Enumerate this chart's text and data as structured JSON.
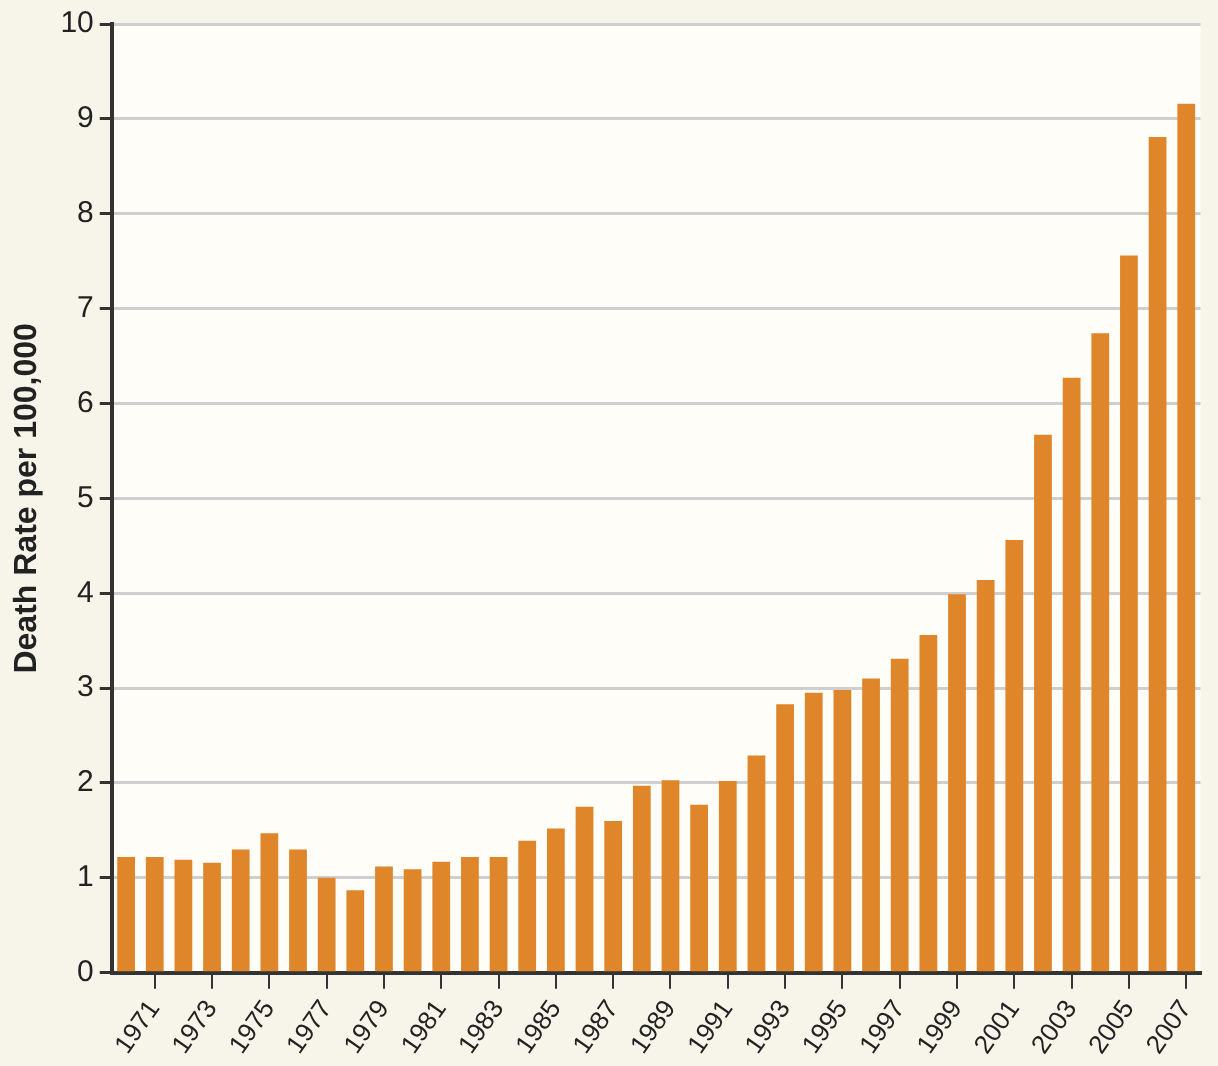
{
  "chart_data": {
    "type": "bar",
    "ylabel": "Death Rate per 100,000",
    "categories": [
      null,
      "1971",
      null,
      "1973",
      null,
      "1975",
      null,
      "1977",
      null,
      "1979",
      null,
      "1981",
      null,
      "1983",
      null,
      "1985",
      null,
      "1987",
      null,
      "1989",
      null,
      "1991",
      null,
      "1993",
      null,
      "1995",
      null,
      "1997",
      null,
      "1999",
      null,
      "2001",
      null,
      "2003",
      null,
      "2005",
      null,
      "2007"
    ],
    "values": [
      1.22,
      1.22,
      1.19,
      1.16,
      1.3,
      1.47,
      1.3,
      1.0,
      0.87,
      1.12,
      1.09,
      1.17,
      1.22,
      1.22,
      1.39,
      1.52,
      1.75,
      1.6,
      1.97,
      2.03,
      1.77,
      2.02,
      2.29,
      2.83,
      2.95,
      2.98,
      3.1,
      3.31,
      3.56,
      3.99,
      4.14,
      4.56,
      5.67,
      6.27,
      6.74,
      7.56,
      8.81,
      9.16
    ],
    "color": "#e0862a",
    "ylim": [
      0,
      10
    ],
    "yticks": [
      0,
      1,
      2,
      3,
      4,
      5,
      6,
      7,
      8,
      9,
      10
    ],
    "grid": "y",
    "legend": false
  }
}
